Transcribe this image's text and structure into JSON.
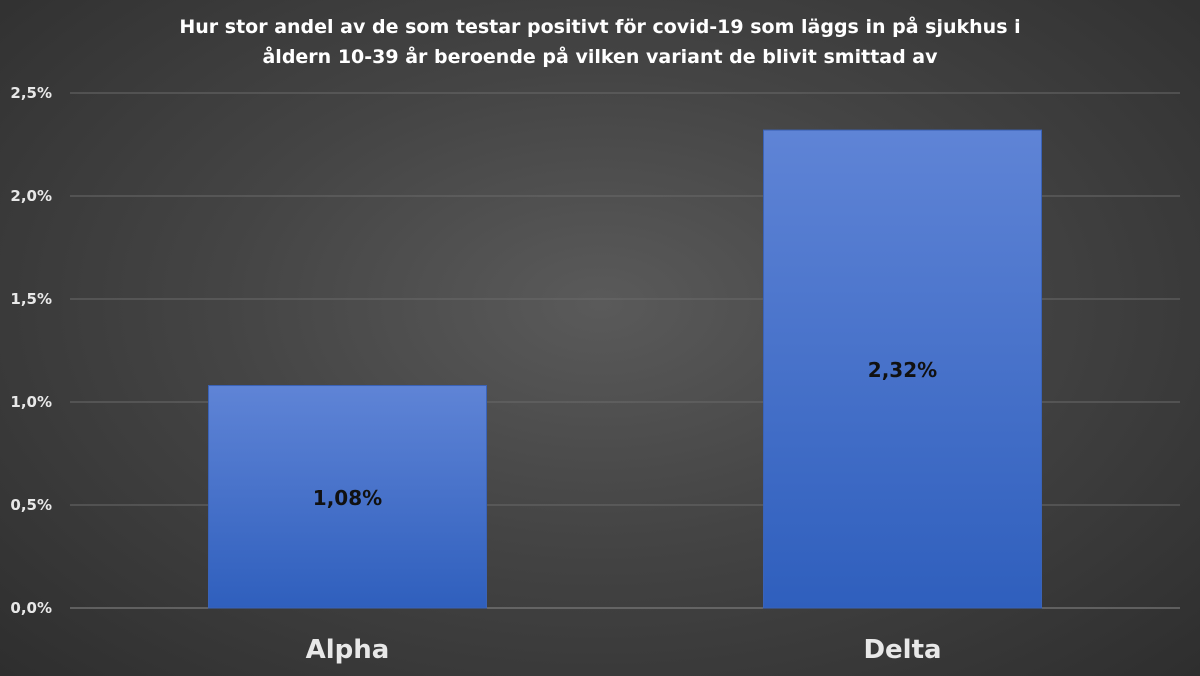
{
  "chart_data": {
    "type": "bar",
    "title": "Hur stor andel av de som testar positivt för covid-19 som läggs in på sjukhus i\nåldern 10-39 år beroende på vilken variant de blivit smittad av",
    "categories": [
      "Alpha",
      "Delta"
    ],
    "values": [
      1.08,
      2.32
    ],
    "data_labels": [
      "1,08%",
      "2,32%"
    ],
    "ylim": [
      0,
      2.5
    ],
    "yticks": [
      0,
      0.5,
      1.0,
      1.5,
      2.0,
      2.5
    ],
    "ytick_labels": [
      "0,0%",
      "0,5%",
      "1,0%",
      "1,5%",
      "2,0%",
      "2,5%"
    ],
    "xlabel": "",
    "ylabel": "",
    "grid": true,
    "bar_color": "#4a72c4",
    "background_color": "#3c3c3c"
  }
}
